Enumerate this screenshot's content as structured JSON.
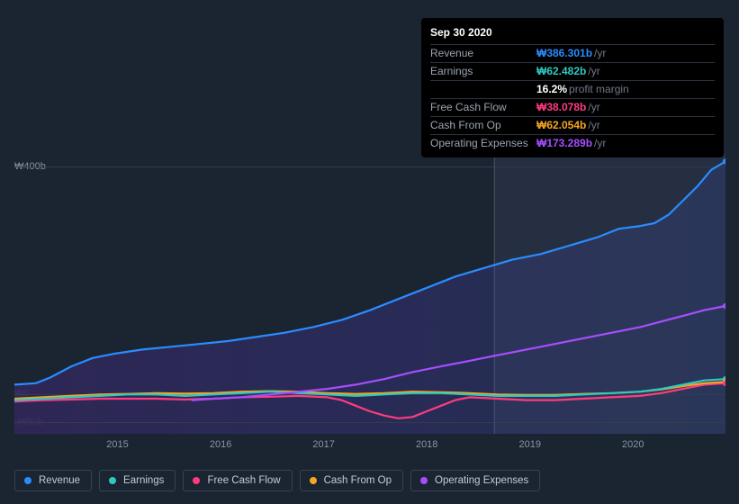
{
  "chart": {
    "type": "line-area",
    "background_color": "#1b2431",
    "inner_gradient": {
      "from": "#2a2350",
      "to": "#262d4a"
    },
    "grid_color": "#333d4d",
    "axis_line_color": "#404a5a",
    "font_family": "sans-serif",
    "data_marker_x": 67.5,
    "y": {
      "labels": [
        "₩400b",
        "₩0",
        "-₩50b"
      ],
      "positions_pct": [
        5,
        86,
        96
      ]
    },
    "x": {
      "labels": [
        "2015",
        "2016",
        "2017",
        "2018",
        "2019",
        "2020"
      ],
      "positions_pct": [
        14.5,
        29,
        43.5,
        58,
        72.5,
        87
      ]
    },
    "series": [
      {
        "key": "revenue",
        "label": "Revenue",
        "color": "#2a8cff",
        "z": 5,
        "points": [
          [
            0,
            82.5
          ],
          [
            3,
            82
          ],
          [
            5,
            80
          ],
          [
            8,
            76
          ],
          [
            11,
            73
          ],
          [
            14,
            71.5
          ],
          [
            18,
            70
          ],
          [
            22,
            69
          ],
          [
            26,
            68
          ],
          [
            30,
            67
          ],
          [
            34,
            65.5
          ],
          [
            38,
            64
          ],
          [
            42,
            62
          ],
          [
            46,
            59.5
          ],
          [
            50,
            56
          ],
          [
            54,
            52
          ],
          [
            58,
            48
          ],
          [
            62,
            44
          ],
          [
            66,
            41
          ],
          [
            70,
            38
          ],
          [
            74,
            36
          ],
          [
            78,
            33
          ],
          [
            82,
            30
          ],
          [
            85,
            27
          ],
          [
            88,
            26
          ],
          [
            90,
            25
          ],
          [
            92,
            22
          ],
          [
            94,
            17
          ],
          [
            96,
            12
          ],
          [
            98,
            6
          ],
          [
            100,
            3
          ]
        ]
      },
      {
        "key": "operating_expenses",
        "label": "Operating Expenses",
        "color": "#a64eff",
        "z": 4,
        "start_x": 25,
        "points": [
          [
            25,
            88
          ],
          [
            28,
            87.5
          ],
          [
            32,
            87
          ],
          [
            36,
            86
          ],
          [
            40,
            85
          ],
          [
            44,
            84
          ],
          [
            48,
            82.5
          ],
          [
            52,
            80.5
          ],
          [
            56,
            78
          ],
          [
            60,
            76
          ],
          [
            64,
            74
          ],
          [
            68,
            72
          ],
          [
            72,
            70
          ],
          [
            76,
            68
          ],
          [
            80,
            66
          ],
          [
            84,
            64
          ],
          [
            88,
            62
          ],
          [
            91,
            60
          ],
          [
            94,
            58
          ],
          [
            97,
            56
          ],
          [
            100,
            54.5
          ]
        ]
      },
      {
        "key": "earnings",
        "label": "Earnings",
        "color": "#2ec9c0",
        "z": 3,
        "points": [
          [
            0,
            88
          ],
          [
            4,
            87.5
          ],
          [
            8,
            87
          ],
          [
            12,
            86.5
          ],
          [
            16,
            86
          ],
          [
            20,
            86
          ],
          [
            24,
            86.5
          ],
          [
            28,
            86
          ],
          [
            32,
            85.5
          ],
          [
            36,
            85
          ],
          [
            40,
            85.5
          ],
          [
            44,
            86
          ],
          [
            48,
            86.5
          ],
          [
            52,
            86
          ],
          [
            56,
            85.5
          ],
          [
            60,
            85.5
          ],
          [
            64,
            86
          ],
          [
            68,
            86.5
          ],
          [
            72,
            86.5
          ],
          [
            76,
            86.5
          ],
          [
            80,
            86
          ],
          [
            84,
            85.5
          ],
          [
            88,
            85
          ],
          [
            91,
            84
          ],
          [
            94,
            82.5
          ],
          [
            97,
            81
          ],
          [
            100,
            80.5
          ]
        ]
      },
      {
        "key": "cash_from_op",
        "label": "Cash From Op",
        "color": "#f5a623",
        "z": 2,
        "points": [
          [
            0,
            87.5
          ],
          [
            4,
            87
          ],
          [
            8,
            86.5
          ],
          [
            12,
            86
          ],
          [
            16,
            85.8
          ],
          [
            20,
            85.5
          ],
          [
            24,
            85.7
          ],
          [
            28,
            85.5
          ],
          [
            32,
            85
          ],
          [
            36,
            84.8
          ],
          [
            40,
            85
          ],
          [
            44,
            85.5
          ],
          [
            48,
            85.8
          ],
          [
            52,
            85.5
          ],
          [
            56,
            85
          ],
          [
            60,
            85.2
          ],
          [
            64,
            85.5
          ],
          [
            68,
            86
          ],
          [
            72,
            86.2
          ],
          [
            76,
            86.2
          ],
          [
            80,
            85.8
          ],
          [
            84,
            85.5
          ],
          [
            88,
            85
          ],
          [
            91,
            84.2
          ],
          [
            94,
            83
          ],
          [
            97,
            82
          ],
          [
            100,
            81.5
          ]
        ]
      },
      {
        "key": "free_cash_flow",
        "label": "Free Cash Flow",
        "color": "#ff3b7f",
        "z": 1,
        "points": [
          [
            0,
            88.5
          ],
          [
            4,
            88
          ],
          [
            8,
            87.8
          ],
          [
            12,
            87.5
          ],
          [
            16,
            87.5
          ],
          [
            20,
            87.5
          ],
          [
            24,
            87.8
          ],
          [
            28,
            87.5
          ],
          [
            32,
            87
          ],
          [
            36,
            86.8
          ],
          [
            40,
            86.5
          ],
          [
            44,
            87
          ],
          [
            46,
            88
          ],
          [
            48,
            90
          ],
          [
            50,
            92
          ],
          [
            52,
            93.5
          ],
          [
            54,
            94.5
          ],
          [
            56,
            94
          ],
          [
            58,
            92
          ],
          [
            60,
            90
          ],
          [
            62,
            88
          ],
          [
            64,
            87
          ],
          [
            68,
            87.5
          ],
          [
            72,
            88
          ],
          [
            76,
            88
          ],
          [
            80,
            87.5
          ],
          [
            84,
            87
          ],
          [
            88,
            86.5
          ],
          [
            91,
            85.5
          ],
          [
            94,
            84
          ],
          [
            97,
            82.5
          ],
          [
            100,
            82
          ]
        ]
      }
    ]
  },
  "tooltip": {
    "date": "Sep 30 2020",
    "rows": [
      {
        "label": "Revenue",
        "value": "₩386.301b",
        "value_color": "#2a8cff",
        "suffix": "/yr"
      },
      {
        "label": "Earnings",
        "value": "₩62.482b",
        "value_color": "#2ec9c0",
        "suffix": "/yr"
      },
      {
        "label": "",
        "value": "16.2%",
        "value_color": "#ffffff",
        "suffix": "profit margin",
        "suffix_light": true
      },
      {
        "label": "Free Cash Flow",
        "value": "₩38.078b",
        "value_color": "#ff3b7f",
        "suffix": "/yr"
      },
      {
        "label": "Cash From Op",
        "value": "₩62.054b",
        "value_color": "#f5a623",
        "suffix": "/yr"
      },
      {
        "label": "Operating Expenses",
        "value": "₩173.289b",
        "value_color": "#a64eff",
        "suffix": "/yr"
      }
    ]
  },
  "legend": {
    "items": [
      {
        "label": "Revenue",
        "color": "#2a8cff"
      },
      {
        "label": "Earnings",
        "color": "#2ec9c0"
      },
      {
        "label": "Free Cash Flow",
        "color": "#ff3b7f"
      },
      {
        "label": "Cash From Op",
        "color": "#f5a623"
      },
      {
        "label": "Operating Expenses",
        "color": "#a64eff"
      }
    ]
  }
}
